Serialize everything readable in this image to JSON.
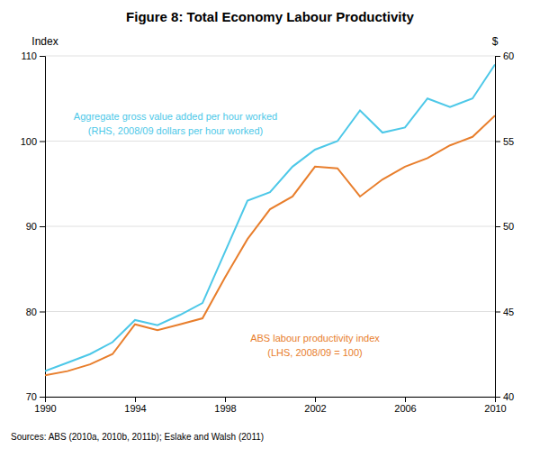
{
  "chart_data": {
    "type": "line",
    "title": "Figure 8: Total Economy Labour Productivity",
    "source": "Sources:  ABS (2010a, 2010b, 2011b); Eslake and Walsh (2011)",
    "ylabel": "Index",
    "y2label": "$",
    "x": [
      1990,
      1991,
      1992,
      1993,
      1994,
      1995,
      1996,
      1997,
      1998,
      1999,
      2000,
      2001,
      2002,
      2003,
      2004,
      2005,
      2006,
      2007,
      2008,
      2009,
      2010
    ],
    "xlim": [
      1990,
      2010
    ],
    "xticks": [
      1990,
      1994,
      1998,
      2002,
      2006,
      2010
    ],
    "ylim": [
      70,
      110
    ],
    "yticks": [
      70,
      80,
      90,
      100,
      110
    ],
    "y2lim": [
      40,
      60
    ],
    "y2ticks": [
      40,
      45,
      50,
      55,
      60
    ],
    "grid": true,
    "series": [
      {
        "color": "#E87E2C",
        "values": [
          72.5,
          73.0,
          73.8,
          75.0,
          78.5,
          77.8,
          78.5,
          79.2,
          84.0,
          88.5,
          92.0,
          93.5,
          97.0,
          96.8,
          93.5,
          95.5,
          97.0,
          98.0,
          99.5,
          100.5,
          103.0
        ]
      },
      {
        "color": "#4DC8E8",
        "axis": "y2",
        "values": [
          41.5,
          42.0,
          42.5,
          43.2,
          44.5,
          44.2,
          44.8,
          45.5,
          48.5,
          51.5,
          52.0,
          53.5,
          54.5,
          55.0,
          56.8,
          55.5,
          55.8,
          57.5,
          57.0,
          57.5,
          59.5
        ]
      }
    ],
    "annotations": [
      {
        "lines": [
          "Aggregate gross value added per hour worked",
          "(RHS, 2008/09 dollars per hour worked)"
        ],
        "color": "#4DC8E8"
      },
      {
        "lines": [
          "ABS labour productivity index",
          "(LHS, 2008/09 = 100)"
        ],
        "color": "#E87E2C"
      }
    ]
  }
}
